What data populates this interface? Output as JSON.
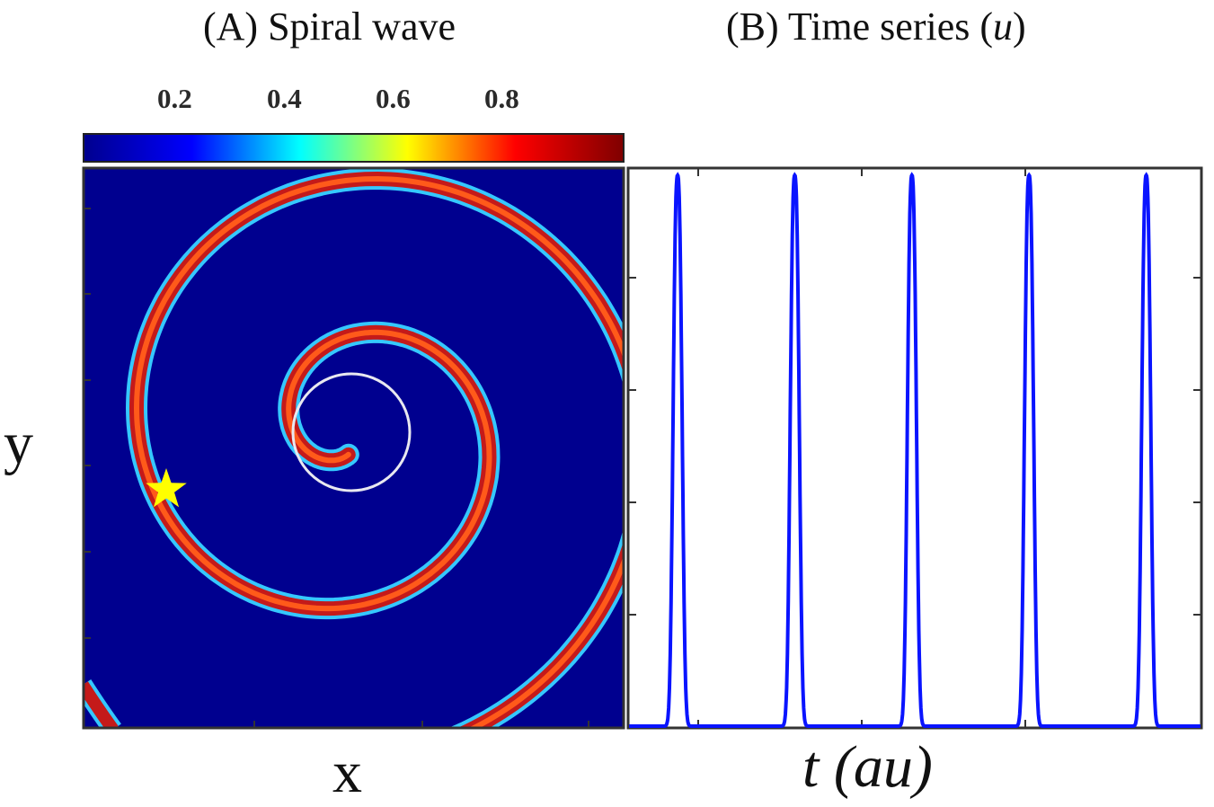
{
  "panel_a": {
    "title": "(A) Spiral wave",
    "xlabel": "x",
    "ylabel": "y",
    "colorbar_ticks": [
      "0.2",
      "0.4",
      "0.6",
      "0.8"
    ],
    "colormap": [
      "#00008f",
      "#0000ff",
      "#00ffff",
      "#ffff00",
      "#ff0000",
      "#800000"
    ],
    "background_color": "#00008f",
    "wave_color": "#c41a1a",
    "tip_trajectory_color": "#e8e8f0",
    "marker": "yellow-star"
  },
  "panel_b": {
    "title_prefix": "(B) Time series (",
    "title_var": "u",
    "title_suffix": ")",
    "xlabel_var": "t",
    "xlabel_unit": "(au)",
    "line_color": "#0a14ff"
  },
  "chart_data": [
    {
      "type": "heatmap",
      "title": "(A) Spiral wave",
      "xlabel": "x",
      "ylabel": "y",
      "colorbar": {
        "ticks": [
          0.2,
          0.4,
          0.6,
          0.8
        ],
        "range": [
          0.05,
          0.95
        ]
      },
      "description_values": {
        "background": 0.05,
        "wavefront": 0.95
      }
    },
    {
      "type": "line",
      "title": "(B) Time series (u)",
      "xlabel": "t (au)",
      "ylabel": "",
      "series": [
        {
          "values_description": "periodic spikes",
          "spike_times": [
            0.085,
            0.29,
            0.495,
            0.7,
            0.905
          ],
          "baseline": 0,
          "peak": 1
        }
      ],
      "xlim": [
        0,
        1
      ],
      "ylim": [
        0,
        1
      ]
    }
  ]
}
